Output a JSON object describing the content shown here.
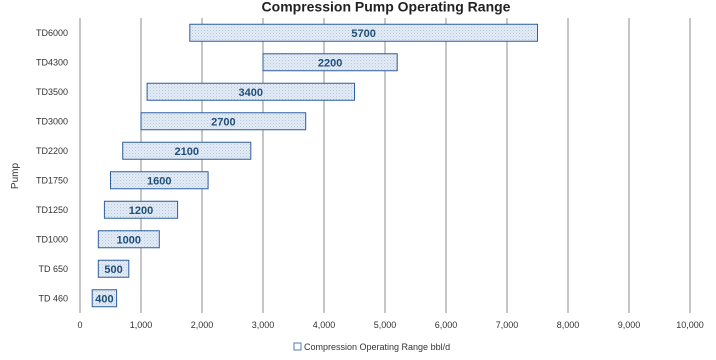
{
  "chart_data": {
    "type": "bar",
    "orientation": "horizontal",
    "title": "Compression Pump Operating Range",
    "ylabel": "Pump",
    "xlabel": "",
    "xlim": [
      0,
      10000
    ],
    "x_ticks": [
      "0",
      "1,000",
      "2,000",
      "3,000",
      "4,000",
      "5,000",
      "6,000",
      "7,000",
      "8,000",
      "9,000",
      "10,000"
    ],
    "categories": [
      "TD6000",
      "TD4300",
      "TD3500",
      "TD3000",
      "TD2200",
      "TD1750",
      "TD1250",
      "TD1000",
      "TD 650",
      "TD 460"
    ],
    "series": [
      {
        "name": "Compression Operating Range bbl/d",
        "start": [
          1800,
          3000,
          1100,
          1000,
          700,
          500,
          400,
          300,
          300,
          200
        ],
        "end": [
          7500,
          5200,
          4500,
          3700,
          2800,
          2100,
          1600,
          1300,
          800,
          600
        ],
        "values": [
          5700,
          2200,
          3400,
          2700,
          2100,
          1600,
          1200,
          1000,
          500,
          400
        ],
        "labels": [
          "5700",
          "2200",
          "3400",
          "2700",
          "2100",
          "1600",
          "1200",
          "1000",
          "500",
          "400"
        ]
      }
    ],
    "grid": "vertical",
    "legend": "bottom",
    "colors": {
      "bar_fill": "#dce6f2",
      "bar_stroke": "#2e5e9e",
      "label": "#1f4e79",
      "grid": "#808080"
    }
  }
}
